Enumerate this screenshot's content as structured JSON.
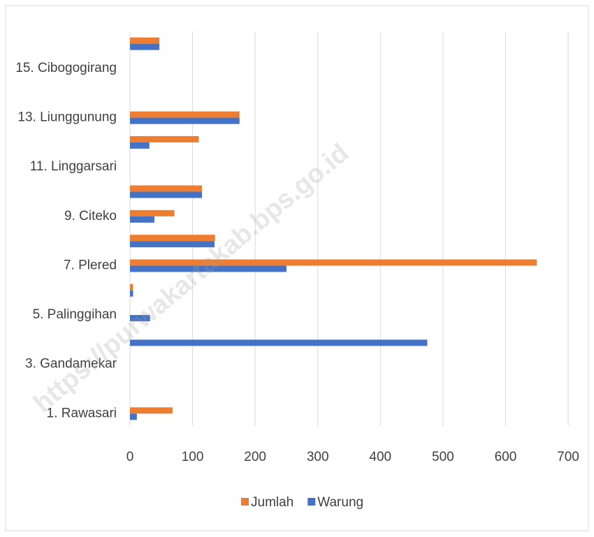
{
  "chart_data": {
    "type": "bar",
    "orientation": "horizontal",
    "categories": [
      "1. Rawasari",
      null,
      "3. Gandamekar",
      null,
      "5. Palinggihan",
      null,
      "7. Plered",
      null,
      "9. Citeko",
      null,
      "11. Linggarsari",
      null,
      "13. Liunggunung",
      null,
      "15. Cibogogirang",
      null
    ],
    "series": [
      {
        "name": "Jumlah",
        "color": "#ed7d31",
        "values": [
          68,
          0,
          0,
          0,
          0,
          5,
          650,
          136,
          71,
          115,
          0,
          110,
          175,
          0,
          0,
          47
        ]
      },
      {
        "name": "Warung",
        "color": "#4472c4",
        "values": [
          11,
          0,
          0,
          475,
          32,
          5,
          250,
          135,
          39,
          115,
          0,
          31,
          175,
          0,
          0,
          47
        ]
      }
    ],
    "xlim": [
      0,
      700
    ],
    "xticks": [
      0,
      100,
      200,
      300,
      400,
      500,
      600,
      700
    ],
    "grid": true,
    "legend": "bottom",
    "watermark": "https://purwakartakab.bps.go.id"
  }
}
